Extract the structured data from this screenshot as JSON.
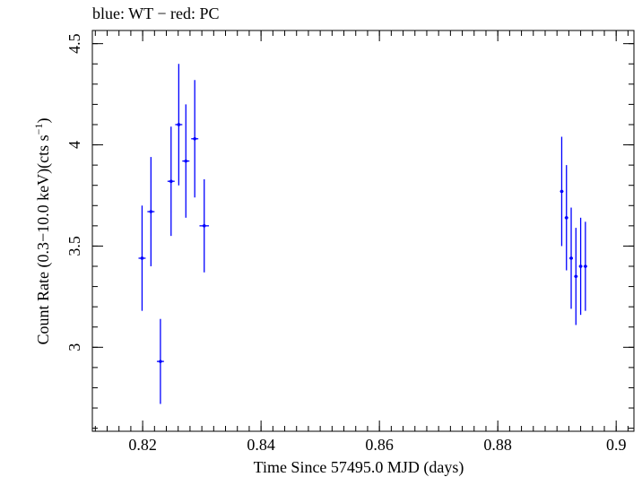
{
  "chart_data": {
    "type": "scatter",
    "title": "blue: WT − red: PC",
    "xlabel": "Time Since 57495.0 MJD (days)",
    "ylabel_main": "Count Rate (0.3−10.0 keV)(cts s",
    "ylabel_sup": "−1",
    "ylabel_close": ")",
    "xlim": [
      0.8115,
      0.903
    ],
    "ylim": [
      2.585,
      4.565
    ],
    "xticks": [
      0.82,
      0.84,
      0.86,
      0.88,
      0.9
    ],
    "xtick_labels": [
      "0.82",
      "0.84",
      "0.86",
      "0.88",
      "0.9"
    ],
    "yticks": [
      3,
      3.5,
      4,
      4.5
    ],
    "ytick_labels": [
      "3",
      "3.5",
      "4",
      "4.5"
    ],
    "grid": false,
    "series": [
      {
        "color": "#0000ff",
        "points": [
          {
            "x": 0.8199,
            "y": 3.44,
            "xerr": 0.0006,
            "yerr_lo": 0.26,
            "yerr_hi": 0.26
          },
          {
            "x": 0.8214,
            "y": 3.67,
            "xerr": 0.0006,
            "yerr_lo": 0.27,
            "yerr_hi": 0.27
          },
          {
            "x": 0.823,
            "y": 2.93,
            "xerr": 0.0006,
            "yerr_lo": 0.21,
            "yerr_hi": 0.21
          },
          {
            "x": 0.8248,
            "y": 3.82,
            "xerr": 0.0006,
            "yerr_lo": 0.27,
            "yerr_hi": 0.27
          },
          {
            "x": 0.8261,
            "y": 4.1,
            "xerr": 0.0006,
            "yerr_lo": 0.3,
            "yerr_hi": 0.3
          },
          {
            "x": 0.8273,
            "y": 3.92,
            "xerr": 0.0006,
            "yerr_lo": 0.28,
            "yerr_hi": 0.28
          },
          {
            "x": 0.8288,
            "y": 4.03,
            "xerr": 0.0006,
            "yerr_lo": 0.29,
            "yerr_hi": 0.29
          },
          {
            "x": 0.8304,
            "y": 3.6,
            "xerr": 0.0008,
            "yerr_lo": 0.23,
            "yerr_hi": 0.23
          },
          {
            "x": 0.8908,
            "y": 3.77,
            "xerr": 0.0003,
            "yerr_lo": 0.27,
            "yerr_hi": 0.27
          },
          {
            "x": 0.8916,
            "y": 3.64,
            "xerr": 0.0003,
            "yerr_lo": 0.26,
            "yerr_hi": 0.26
          },
          {
            "x": 0.8924,
            "y": 3.44,
            "xerr": 0.0003,
            "yerr_lo": 0.25,
            "yerr_hi": 0.25
          },
          {
            "x": 0.8932,
            "y": 3.35,
            "xerr": 0.0003,
            "yerr_lo": 0.24,
            "yerr_hi": 0.24
          },
          {
            "x": 0.894,
            "y": 3.4,
            "xerr": 0.0003,
            "yerr_lo": 0.24,
            "yerr_hi": 0.24
          },
          {
            "x": 0.8948,
            "y": 3.4,
            "xerr": 0.0003,
            "yerr_lo": 0.22,
            "yerr_hi": 0.22
          }
        ]
      }
    ]
  }
}
